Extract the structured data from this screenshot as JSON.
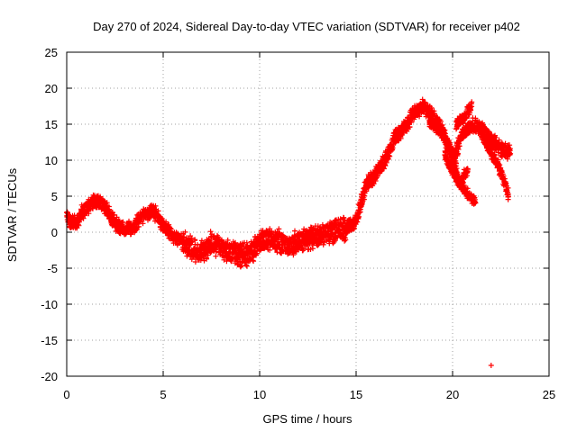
{
  "chart_data": {
    "type": "scatter",
    "title": "Day 270 of 2024, Sidereal Day-to-day VTEC variation (SDTVAR) for receiver p402",
    "xlabel": "GPS time / hours",
    "ylabel": "SDTVAR / TECUs",
    "xlim": [
      0,
      25
    ],
    "ylim": [
      -20,
      25
    ],
    "xticks": [
      0,
      5,
      10,
      15,
      20,
      25
    ],
    "yticks": [
      -20,
      -15,
      -10,
      -5,
      0,
      5,
      10,
      15,
      20,
      25
    ],
    "grid": true,
    "marker": "plus",
    "series": [
      {
        "name": "SDTVAR",
        "color": "#ff0000",
        "trend_x": [
          0.0,
          0.2,
          0.5,
          0.8,
          1.2,
          1.6,
          2.0,
          2.5,
          3.0,
          3.5,
          4.0,
          4.5,
          5.0,
          5.5,
          6.0,
          6.5,
          7.0,
          7.5,
          8.0,
          8.5,
          9.0,
          9.5,
          10.0,
          10.5,
          11.0,
          11.5,
          12.0,
          12.5,
          13.0,
          13.5,
          14.0,
          14.5,
          15.0,
          15.5,
          16.0,
          16.5,
          17.0,
          17.5,
          18.0,
          18.5,
          19.0,
          19.5,
          20.0,
          20.5,
          21.0,
          21.5,
          22.0,
          22.5,
          23.0
        ],
        "trend_y": [
          2.5,
          1.5,
          1.2,
          2.8,
          3.8,
          4.5,
          3.5,
          1.2,
          0.5,
          0.8,
          2.5,
          3.0,
          0.8,
          -0.5,
          -1.2,
          -2.5,
          -2.8,
          -1.5,
          -2.2,
          -2.8,
          -3.2,
          -3.0,
          -1.5,
          -0.8,
          -1.2,
          -2.0,
          -1.2,
          -0.8,
          -0.5,
          -0.2,
          0.3,
          0.5,
          1.5,
          6.5,
          8.0,
          10.0,
          13.0,
          14.5,
          16.5,
          17.5,
          16.0,
          14.0,
          10.0,
          13.5,
          15.0,
          14.5,
          13.0,
          11.5,
          11.0
        ],
        "branches": [
          {
            "x": [
              19.6,
              19.8,
              20.0,
              20.2,
              20.4,
              20.6,
              20.8
            ],
            "y": [
              11.0,
              9.5,
              8.5,
              7.5,
              6.5,
              8.0,
              8.5
            ]
          },
          {
            "x": [
              18.8,
              19.2,
              19.6,
              20.0,
              20.2
            ],
            "y": [
              15.0,
              14.5,
              13.0,
              11.0,
              9.0
            ]
          },
          {
            "x": [
              20.0,
              20.2,
              20.4,
              20.6,
              20.9,
              21.2
            ],
            "y": [
              9.5,
              8.0,
              6.8,
              6.0,
              5.0,
              4.0
            ]
          },
          {
            "x": [
              21.5,
              21.8,
              22.1,
              22.4,
              22.7,
              22.9
            ],
            "y": [
              13.5,
              12.0,
              10.5,
              9.0,
              7.0,
              5.0
            ]
          },
          {
            "x": [
              20.2,
              20.4,
              20.6,
              20.8,
              21.0
            ],
            "y": [
              15.0,
              15.5,
              16.0,
              16.8,
              17.5
            ]
          }
        ],
        "outliers": [
          {
            "x": 22.0,
            "y": -18.5
          }
        ]
      }
    ]
  }
}
